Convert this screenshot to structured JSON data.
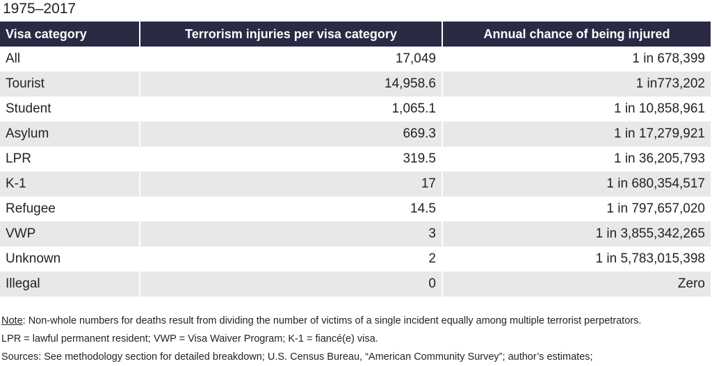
{
  "subtitle": "1975–2017",
  "table": {
    "headers": [
      "Visa category",
      "Terrorism injuries per visa category",
      "Annual chance of being injured"
    ],
    "rows": [
      [
        "All",
        "17,049",
        "1 in 678,399"
      ],
      [
        "Tourist",
        "14,958.6",
        "1 in773,202"
      ],
      [
        "Student",
        "1,065.1",
        "1 in 10,858,961"
      ],
      [
        "Asylum",
        "669.3",
        "1 in 17,279,921"
      ],
      [
        "LPR",
        "319.5",
        "1 in 36,205,793"
      ],
      [
        "K-1",
        "17",
        "1 in 680,354,517"
      ],
      [
        "Refugee",
        "14.5",
        "1 in 797,657,020"
      ],
      [
        "VWP",
        "3",
        "1 in 3,855,342,265"
      ],
      [
        "Unknown",
        "2",
        "1 in 5,783,015,398"
      ],
      [
        "Illegal",
        "0",
        "Zero"
      ]
    ]
  },
  "notes": {
    "note_label": "Note",
    "note_text": ": Non-whole numbers for deaths result from dividing the number of victims of a single incident equally among multiple terrorist perpetrators.",
    "abbreviations": "LPR = lawful permanent resident; VWP = Visa Waiver Program; K-1 = fiancé(e) visa.",
    "sources": "Sources: See methodology section for detailed breakdown; U.S. Census Bureau, “American Community Survey”; author’s estimates;"
  }
}
